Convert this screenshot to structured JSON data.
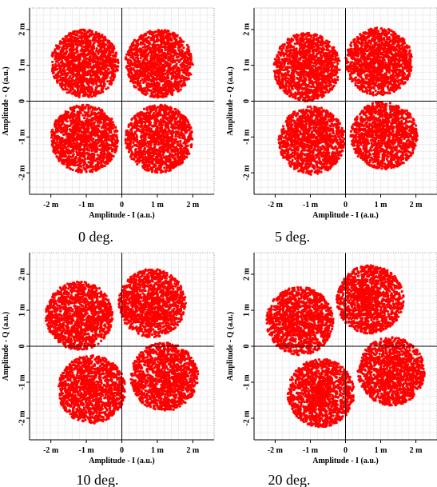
{
  "chart_data": [
    {
      "type": "scatter",
      "caption": "0 deg.",
      "xlabel": "Amplitude - I (a.u.)",
      "ylabel": "Amplitude - Q (a.u.)",
      "xticks": [
        "-2 m",
        "-1 m",
        "0",
        "1 m",
        "2 m"
      ],
      "yticks": [
        "-2 m",
        "-1 m",
        "0",
        "1 m",
        "2 m"
      ],
      "xlim": [
        -2.6,
        2.6
      ],
      "ylim": [
        -2.6,
        2.6
      ],
      "grid": true,
      "marker_color": "#ff0000",
      "clusters": [
        {
          "center": [
            -1.05,
            1.05
          ],
          "radius": 0.95
        },
        {
          "center": [
            1.05,
            1.05
          ],
          "radius": 0.95
        },
        {
          "center": [
            -1.05,
            -1.05
          ],
          "radius": 0.95
        },
        {
          "center": [
            1.05,
            -1.05
          ],
          "radius": 0.95
        }
      ]
    },
    {
      "type": "scatter",
      "caption": "5 deg.",
      "xlabel": "Amplitude - I (a.u.)",
      "ylabel": "Amplitude - Q (a.u.)",
      "xticks": [
        "-2 m",
        "-1 m",
        "0",
        "1 m",
        "2 m"
      ],
      "yticks": [
        "-2 m",
        "-1 m",
        "0",
        "1 m",
        "2 m"
      ],
      "xlim": [
        -2.6,
        2.6
      ],
      "ylim": [
        -2.6,
        2.6
      ],
      "grid": true,
      "marker_color": "#ff0000",
      "clusters": [
        {
          "center": [
            -1.1,
            0.95
          ],
          "radius": 0.95
        },
        {
          "center": [
            0.95,
            1.1
          ],
          "radius": 0.95
        },
        {
          "center": [
            -0.95,
            -1.1
          ],
          "radius": 0.95
        },
        {
          "center": [
            1.1,
            -0.95
          ],
          "radius": 0.95
        }
      ]
    },
    {
      "type": "scatter",
      "caption": "10 deg.",
      "xlabel": "Amplitude - I (a.u.)",
      "ylabel": "Amplitude - Q (a.u.)",
      "xticks": [
        "-2 m",
        "-1 m",
        "0",
        "1 m",
        "2 m"
      ],
      "yticks": [
        "-2 m",
        "-1 m",
        "0",
        "1 m",
        "2 m"
      ],
      "xlim": [
        -2.6,
        2.6
      ],
      "ylim": [
        -2.6,
        2.6
      ],
      "grid": true,
      "marker_color": "#ff0000",
      "clusters": [
        {
          "center": [
            -1.2,
            0.85
          ],
          "radius": 0.95
        },
        {
          "center": [
            0.85,
            1.2
          ],
          "radius": 0.95
        },
        {
          "center": [
            -0.85,
            -1.2
          ],
          "radius": 0.95
        },
        {
          "center": [
            1.2,
            -0.85
          ],
          "radius": 0.95
        }
      ]
    },
    {
      "type": "scatter",
      "caption": "20 deg.",
      "xlabel": "Amplitude - I (a.u.)",
      "ylabel": "Amplitude - Q (a.u.)",
      "xticks": [
        "-2 m",
        "-1 m",
        "0",
        "1 m",
        "2 m"
      ],
      "yticks": [
        "-2 m",
        "-1 m",
        "0",
        "1 m",
        "2 m"
      ],
      "xlim": [
        -2.6,
        2.6
      ],
      "ylim": [
        -2.6,
        2.6
      ],
      "grid": true,
      "marker_color": "#ff0000",
      "clusters": [
        {
          "center": [
            -1.3,
            0.7
          ],
          "radius": 0.95
        },
        {
          "center": [
            0.7,
            1.3
          ],
          "radius": 0.95
        },
        {
          "center": [
            -0.7,
            -1.3
          ],
          "radius": 0.95
        },
        {
          "center": [
            1.3,
            -0.7
          ],
          "radius": 0.95
        }
      ]
    }
  ]
}
